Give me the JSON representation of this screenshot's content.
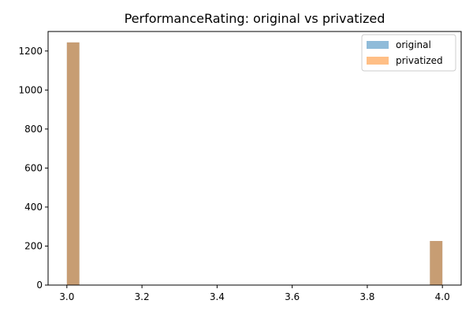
{
  "chart_data": {
    "type": "bar",
    "title": "PerformanceRating: original vs privatized",
    "xlabel": "",
    "ylabel": "",
    "xlim": [
      2.95,
      4.05
    ],
    "ylim": [
      0,
      1300
    ],
    "bin_width": 0.0333,
    "x_ticks": [
      3.0,
      3.2,
      3.4,
      3.6,
      3.8,
      4.0
    ],
    "x_tick_labels": [
      "3.0",
      "3.2",
      "3.4",
      "3.6",
      "3.8",
      "4.0"
    ],
    "y_ticks": [
      0,
      200,
      400,
      600,
      800,
      1000,
      1200
    ],
    "y_tick_labels": [
      "0",
      "200",
      "400",
      "600",
      "800",
      "1000",
      "1200"
    ],
    "legend_position": "top-right",
    "series": [
      {
        "name": "original",
        "color": "#1f77b4",
        "opacity": 0.5,
        "bins": [
          {
            "x": 3.0,
            "count": 1244
          },
          {
            "x": 3.9667,
            "count": 226
          }
        ]
      },
      {
        "name": "privatized",
        "color": "#ff7f0e",
        "opacity": 0.5,
        "bins": [
          {
            "x": 3.0,
            "count": 1244
          },
          {
            "x": 3.9667,
            "count": 226
          }
        ]
      }
    ]
  }
}
